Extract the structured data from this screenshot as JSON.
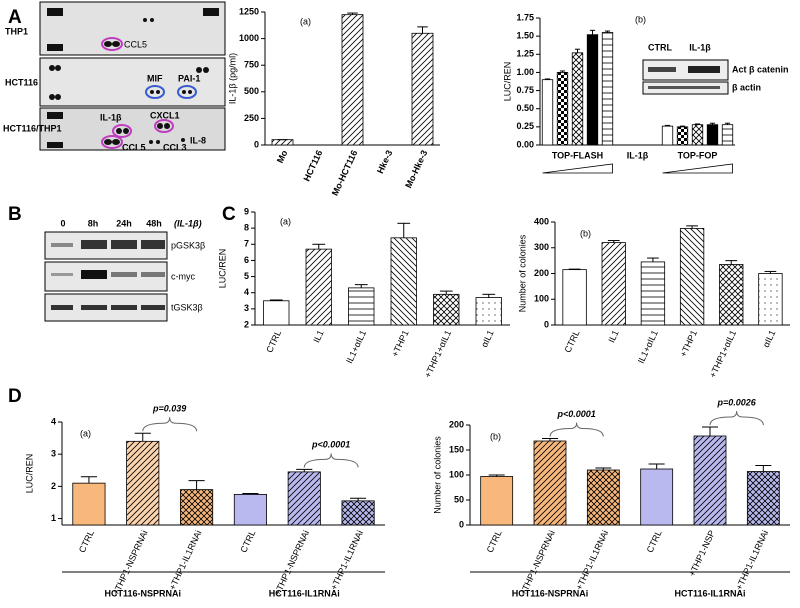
{
  "panel_labels": [
    "A",
    "B",
    "C",
    "D"
  ],
  "blot_a": {
    "rows": [
      "THP1",
      "HCT116",
      "HCT116/THP1"
    ],
    "spots": [
      "CCL5",
      "MIF",
      "PAI-1",
      "IL-1β",
      "CXCL1",
      "CCL5",
      "CCL3",
      "IL-8"
    ]
  },
  "inset": {
    "columns": [
      "CTRL",
      "IL-1β"
    ],
    "rows": [
      "Act β catenin",
      "β actin"
    ]
  },
  "blot_b": {
    "columns": [
      "0",
      "8h",
      "24h",
      "48h"
    ],
    "treatment": "(IL-1β)",
    "rows": [
      "pGSK3β",
      "c-myc",
      "tGSK3β"
    ]
  },
  "chart_data": [
    {
      "type": "bar",
      "subtitle": "(a)",
      "ylabel": "IL-1β (pg/ml)",
      "categories": [
        "Mo",
        "HCT116",
        "Mo-HCT116",
        "Hke-3",
        "Mo-Hke-3"
      ],
      "values": [
        50,
        0,
        1225,
        0,
        1050
      ],
      "errors": [
        0,
        0,
        15,
        0,
        60
      ],
      "colors": [
        "#ffffff",
        "#ffffff",
        "#ffffff",
        "#ffffff",
        "#ffffff"
      ],
      "patterns": [
        "hatch",
        "hatch",
        "hatch",
        "hatch",
        "hatch"
      ],
      "ylim": [
        0,
        1250
      ],
      "yticks": [
        0,
        250,
        500,
        750,
        1000,
        1250
      ]
    },
    {
      "type": "bar",
      "subtitle": "(b)",
      "ylabel": "LUC/REN",
      "categories": [
        null,
        null,
        null,
        null,
        null,
        null,
        null,
        null,
        null,
        null
      ],
      "values": [
        0.9,
        1.0,
        1.27,
        1.52,
        1.55,
        0.26,
        0.25,
        0.28,
        0.28,
        0.28
      ],
      "errors": [
        0.01,
        0.02,
        0.05,
        0.06,
        0.02,
        0.01,
        0.01,
        0.01,
        0.02,
        0.02
      ],
      "colors": [
        "#ffffff",
        "#ffffff",
        "#ffffff",
        "#000000",
        "#ffffff",
        "#ffffff",
        "#ffffff",
        "#ffffff",
        "#000000",
        "#ffffff"
      ],
      "patterns": [
        "none",
        "check",
        "cross",
        "none",
        "hlines",
        "none",
        "check",
        "cross",
        "none",
        "hlines"
      ],
      "groups": [
        "TOP-FLASH",
        "IL-1β",
        "TOP-FOP"
      ],
      "ylim": [
        0,
        1.75
      ],
      "yticks": [
        {
          "value": 0,
          "label": "0.00"
        },
        {
          "value": 0.25,
          "label": "0.25"
        },
        {
          "value": 0.5,
          "label": "0.50"
        },
        {
          "value": 0.75,
          "label": "0.75"
        },
        {
          "value": 1,
          "label": "1.00"
        },
        {
          "value": 1.25,
          "label": "1.25"
        },
        {
          "value": 1.5,
          "label": "1.50"
        },
        {
          "value": 1.75,
          "label": "1.75"
        }
      ]
    },
    {
      "type": "bar",
      "subtitle": "(a)",
      "ylabel": "LUC/REN",
      "categories": [
        "CTRL",
        "IL1",
        "IL1+αIL1",
        "+THP1",
        "+THP1+αIL1",
        "αIL1"
      ],
      "values": [
        3.5,
        6.7,
        4.3,
        7.4,
        3.9,
        3.7
      ],
      "errors": [
        0.05,
        0.3,
        0.2,
        0.9,
        0.2,
        0.2
      ],
      "colors": [
        "#ffffff",
        "#ffffff",
        "#ffffff",
        "#ffffff",
        "#ffffff",
        "#ffffff"
      ],
      "patterns": [
        "none",
        "hatch",
        "hlines",
        "bhatch",
        "cross",
        "dots"
      ],
      "ylim": [
        2,
        9
      ],
      "yticks": [
        2,
        3,
        4,
        5,
        6,
        7,
        8,
        9
      ]
    },
    {
      "type": "bar",
      "subtitle": "(b)",
      "ylabel": "Number of colonies",
      "categories": [
        "CTRL",
        "IL1",
        "IL1+αIL1",
        "+THP1",
        "+THP1+αIL1",
        "αIL1"
      ],
      "values": [
        215,
        320,
        245,
        375,
        235,
        200
      ],
      "errors": [
        2,
        8,
        15,
        10,
        15,
        8
      ],
      "colors": [
        "#ffffff",
        "#ffffff",
        "#ffffff",
        "#ffffff",
        "#ffffff",
        "#ffffff"
      ],
      "patterns": [
        "none",
        "hatch",
        "hlines",
        "bhatch",
        "cross",
        "dots"
      ],
      "ylim": [
        0,
        400
      ],
      "yticks": [
        0,
        100,
        200,
        300,
        400
      ]
    },
    {
      "type": "bar",
      "subtitle": "(a)",
      "ylabel": "LUC/REN",
      "categories": [
        "CTRL",
        "+THP1-NSPRNAi",
        "+THP1-IL1RNAi",
        "CTRL",
        "+THP1-NSPRNAi",
        "+THP1-IL1RNAi"
      ],
      "values": [
        2.1,
        3.4,
        1.9,
        1.75,
        2.45,
        1.55
      ],
      "errors": [
        0.2,
        0.25,
        0.28,
        0.03,
        0.08,
        0.08
      ],
      "colors": [
        "#f8b87c",
        "#fbd3ad",
        "#f8b87c",
        "#b9b9f0",
        "#b9b9f0",
        "#b9b9f0"
      ],
      "patterns": [
        "none",
        "hatch",
        "cross",
        "none",
        "hatch",
        "cross"
      ],
      "annotations": [
        "p=0.039",
        "p<0.0001"
      ],
      "groups": [
        "HCT116-NSPRNAi",
        "HCT116-IL1RNAi"
      ],
      "ylim": [
        0.8,
        4
      ],
      "yticks": [
        1,
        2,
        3,
        4
      ]
    },
    {
      "type": "bar",
      "subtitle": "(b)",
      "ylabel": "Number of colonies",
      "categories": [
        "CTRL",
        "+THP1-NSPRNAi",
        "+THP1-IL1RNAi",
        "CTRL",
        "+THP1-NSP",
        "+THP1-IL1RNAi"
      ],
      "values": [
        97,
        168,
        110,
        112,
        178,
        107
      ],
      "errors": [
        3,
        5,
        4,
        10,
        18,
        12
      ],
      "colors": [
        "#f8b87c",
        "#f8b87c",
        "#f8b87c",
        "#b9b9f0",
        "#b9b9f0",
        "#b9b9f0"
      ],
      "patterns": [
        "none",
        "hatch",
        "cross",
        "none",
        "hatch",
        "cross"
      ],
      "annotations": [
        "p<0.0001",
        "p=0.0026"
      ],
      "groups": [
        "HCT116-NSPRNAi",
        "HCT116-IL1RNAi"
      ],
      "ylim": [
        0,
        200
      ],
      "yticks": [
        0,
        50,
        100,
        150,
        200
      ]
    }
  ]
}
